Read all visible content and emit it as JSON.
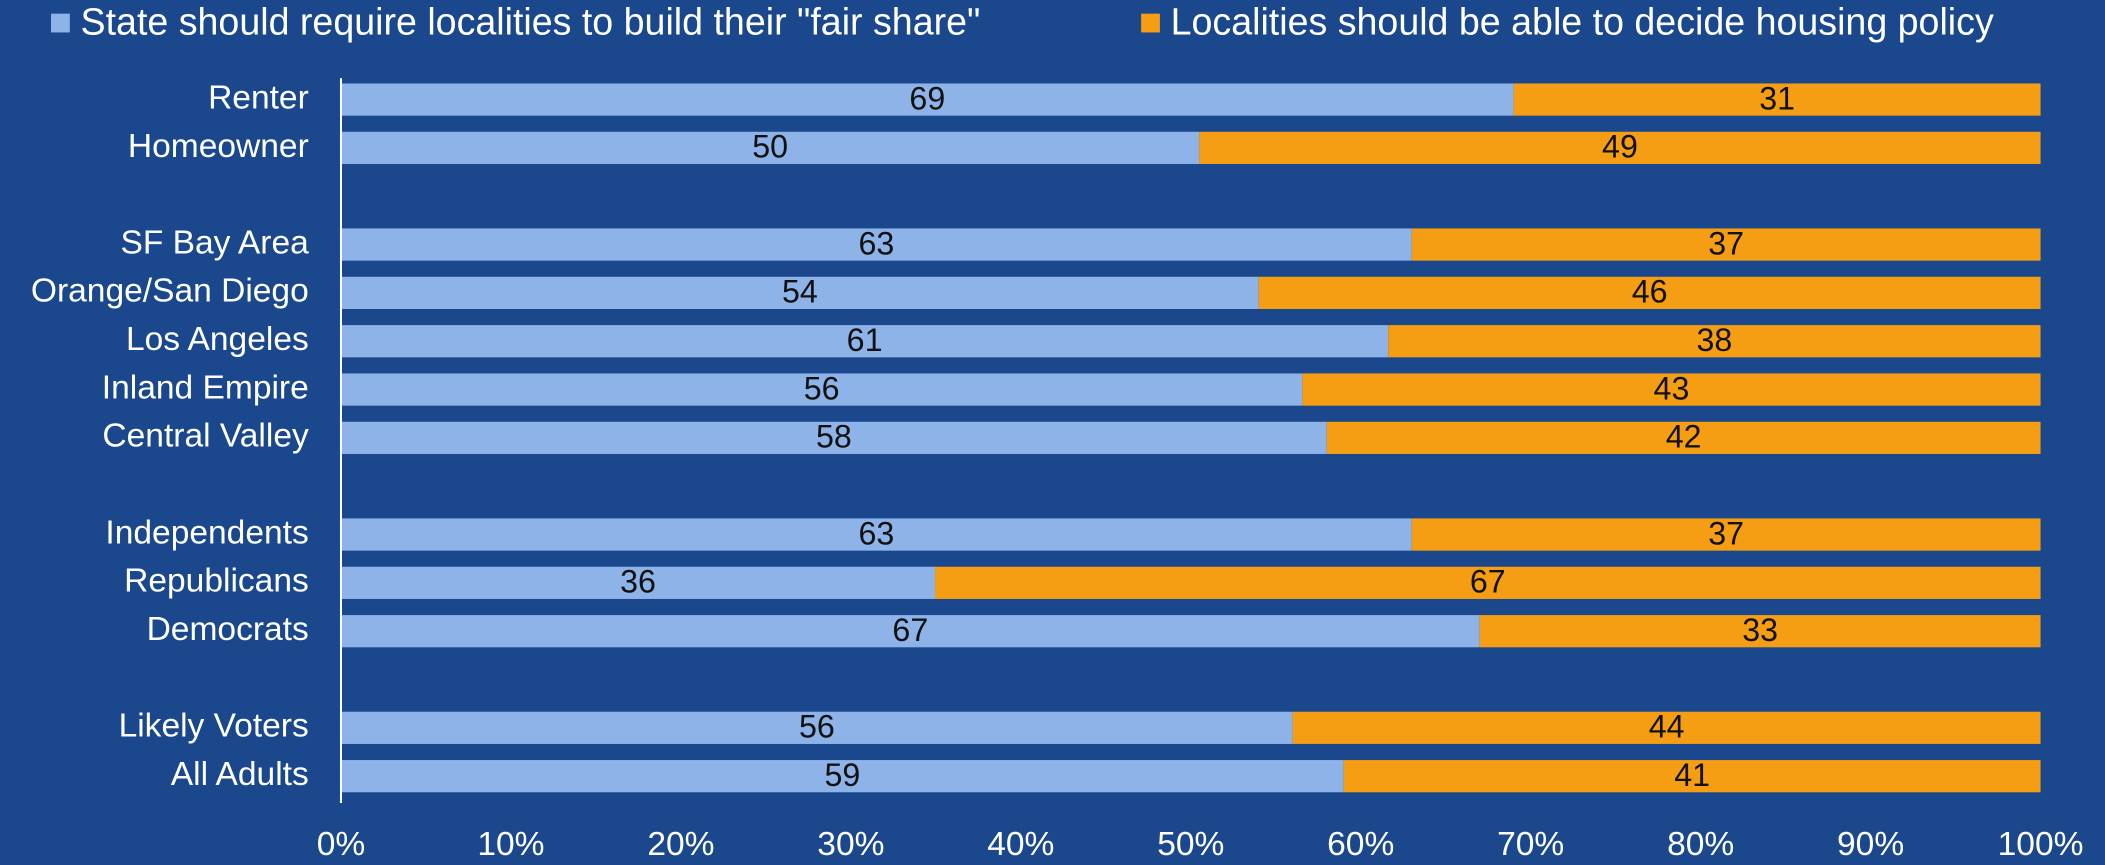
{
  "chart_data": {
    "type": "bar",
    "orientation": "horizontal",
    "stacking": "percent",
    "categories": [
      "Renter",
      "Homeowner",
      null,
      "SF Bay Area",
      "Orange/San Diego",
      "Los Angeles",
      "Inland Empire",
      "Central Valley",
      null,
      "Independents",
      "Republicans",
      "Democrats",
      null,
      "Likely Voters",
      "All Adults"
    ],
    "series": [
      {
        "name": "State should require localities to build their \"fair share\"",
        "color": "#8db3e9",
        "values": [
          69,
          50,
          null,
          63,
          54,
          61,
          56,
          58,
          null,
          63,
          36,
          67,
          null,
          56,
          59
        ]
      },
      {
        "name": "Localities should be able to decide housing policy",
        "color": "#f59d13",
        "values": [
          31,
          49,
          null,
          37,
          46,
          38,
          43,
          42,
          null,
          37,
          67,
          33,
          null,
          44,
          41
        ]
      }
    ],
    "xlim": [
      0,
      100
    ],
    "xticks": [
      {
        "value": 0,
        "label": "0%"
      },
      {
        "value": 10,
        "label": "10%"
      },
      {
        "value": 20,
        "label": "20%"
      },
      {
        "value": 30,
        "label": "30%"
      },
      {
        "value": 40,
        "label": "40%"
      },
      {
        "value": 50,
        "label": "50%"
      },
      {
        "value": 60,
        "label": "60%"
      },
      {
        "value": 70,
        "label": "70%"
      },
      {
        "value": 80,
        "label": "80%"
      },
      {
        "value": 90,
        "label": "90%"
      },
      {
        "value": 100,
        "label": "100%"
      }
    ],
    "legend": "top",
    "grid": false
  }
}
